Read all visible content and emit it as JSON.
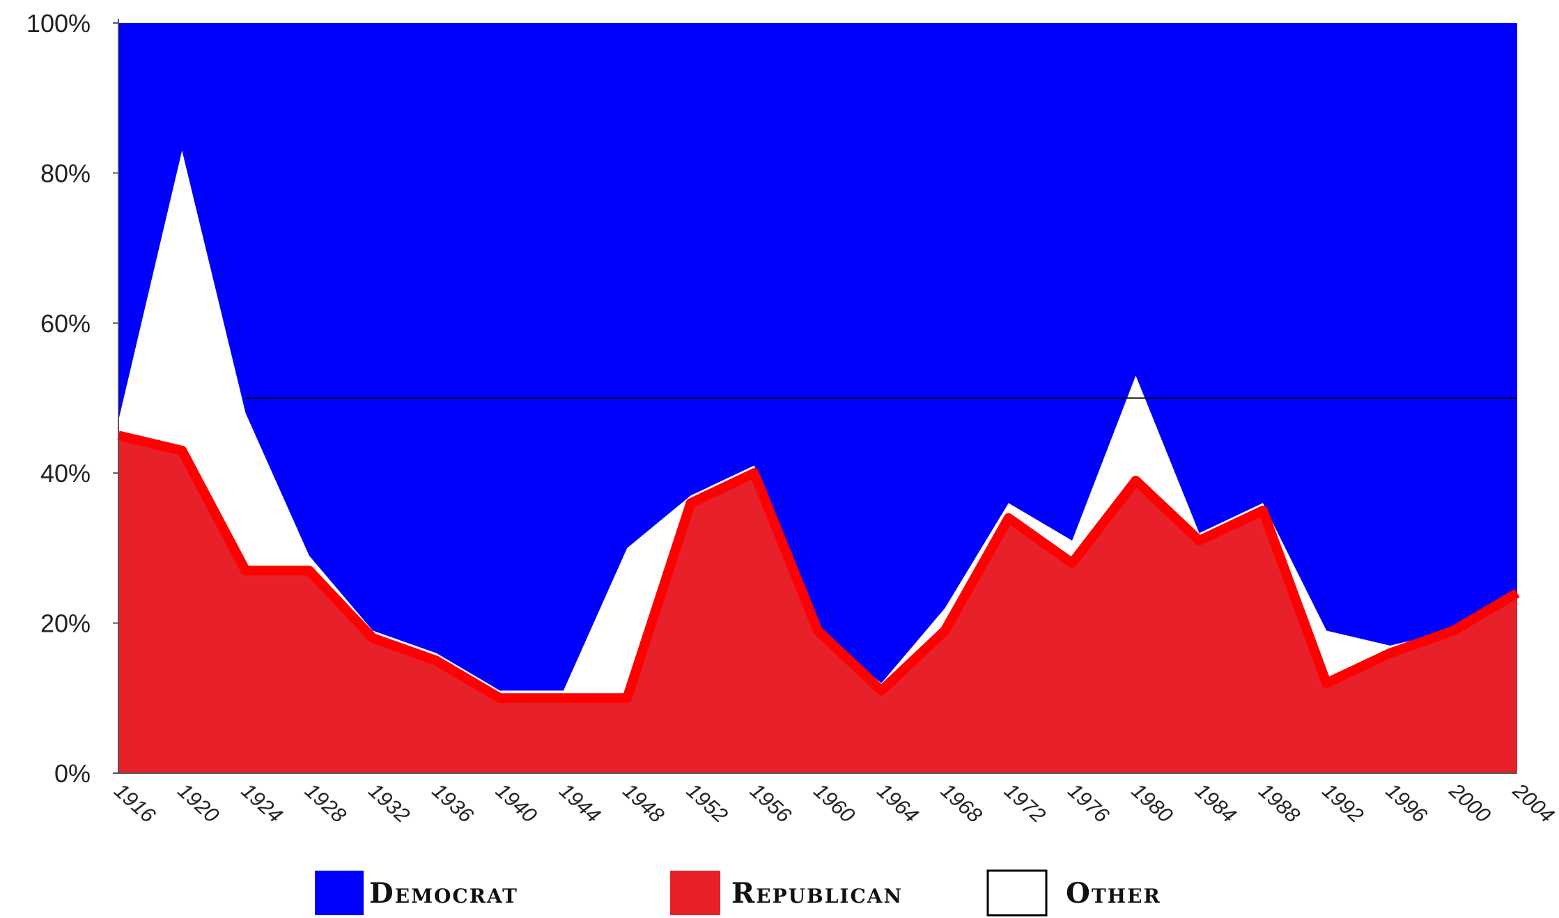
{
  "chart_data": {
    "type": "area",
    "title": "",
    "xlabel": "",
    "ylabel": "",
    "ylim": [
      0,
      100
    ],
    "y_ticks": [
      "0%",
      "20%",
      "40%",
      "60%",
      "80%",
      "100%"
    ],
    "x_ticks": [
      "1916",
      "1920",
      "1924",
      "1928",
      "1932",
      "1936",
      "1940",
      "1944",
      "1948",
      "1952",
      "1956",
      "1960",
      "1964",
      "1968",
      "1972",
      "1976",
      "1980",
      "1984",
      "1988",
      "1992",
      "1996",
      "2000",
      "2004"
    ],
    "x": [
      1916,
      1920,
      1924,
      1928,
      1932,
      1936,
      1940,
      1944,
      1948,
      1952,
      1956,
      1960,
      1964,
      1968,
      1972,
      1976,
      1980,
      1984,
      1988,
      1992,
      1996,
      2000,
      2004
    ],
    "stacking": "100% stacked",
    "reference_line": 50,
    "grid": false,
    "legend_position": "bottom",
    "series": [
      {
        "name": "Republican",
        "color": "#e8202a",
        "values": [
          45,
          43,
          27,
          27,
          18,
          15,
          10,
          10,
          10,
          36,
          40,
          19,
          11,
          19,
          34,
          28,
          39,
          31,
          35,
          12,
          16,
          19,
          24
        ]
      },
      {
        "name": "Other",
        "color": "#ffffff",
        "values": [
          2,
          40,
          21,
          2,
          1,
          1,
          1,
          1,
          20,
          1,
          1,
          0,
          1,
          3,
          2,
          3,
          14,
          1,
          1,
          7,
          1,
          0,
          0
        ]
      },
      {
        "name": "Democrat",
        "color": "#0000ff",
        "values": [
          53,
          17,
          52,
          71,
          81,
          84,
          89,
          89,
          70,
          63,
          59,
          81,
          88,
          78,
          64,
          69,
          47,
          68,
          64,
          81,
          83,
          81,
          76
        ]
      }
    ],
    "legend": [
      {
        "label": "Democrat",
        "color": "#0000ff"
      },
      {
        "label": "Republican",
        "color": "#e8202a"
      },
      {
        "label": "Other",
        "color": "#ffffff"
      }
    ]
  }
}
